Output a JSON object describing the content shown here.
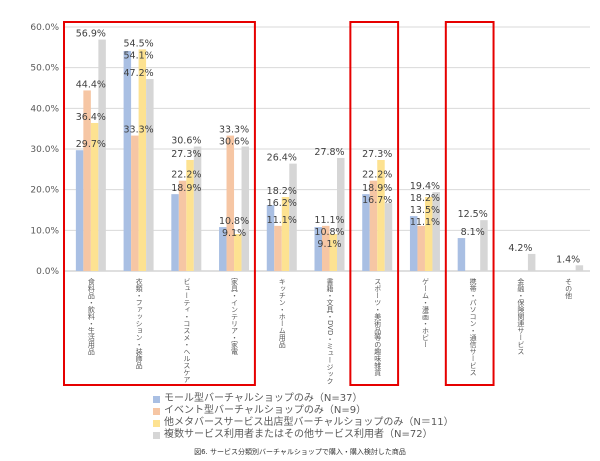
{
  "chart_data": {
    "type": "bar",
    "title": "",
    "caption": "図6. サービス分類別バーチャルショップで購入・購入検討した商品",
    "ylim": [
      0,
      60
    ],
    "yticks": [
      "0.0%",
      "10.0%",
      "20.0%",
      "30.0%",
      "40.0%",
      "50.0%",
      "60.0%"
    ],
    "grid": true,
    "legend_position": "bottom",
    "categories": [
      "食料品・飲料・生活用品",
      "衣類・ファッション・装飾品",
      "ビューティ・コスメ・ヘルスケア",
      "家具・インテリア・家電",
      "キッチン・ホーム用品",
      "書籍・文具・DVD・ミュージック",
      "スポーツ・美術品等の趣味雑貨",
      "ゲーム・漫画・ホビー",
      "携帯・パソコン・通信サービス",
      "金融・保険関連サービス",
      "その他"
    ],
    "series": [
      {
        "name": "モール型バーチャルショップのみ（N=37）",
        "color": "#a9bfe3",
        "values": [
          29.7,
          54.1,
          18.9,
          10.8,
          16.2,
          10.8,
          18.9,
          13.5,
          8.1,
          0,
          0
        ]
      },
      {
        "name": "イベント型バーチャルショップのみ（N=9）",
        "color": "#f6c6a4",
        "values": [
          44.4,
          33.3,
          22.2,
          33.3,
          11.1,
          11.1,
          22.2,
          11.1,
          0,
          0,
          0
        ]
      },
      {
        "name": "他メタバースサービス出店型バーチャルショップのみ（N＝11）",
        "color": "#fde291",
        "values": [
          36.4,
          54.5,
          27.3,
          9.1,
          18.2,
          9.1,
          27.3,
          18.2,
          0,
          0,
          0
        ]
      },
      {
        "name": "複数サービス利用者またはその他サービス利用者（N=72）",
        "color": "#d6d6d6",
        "values": [
          56.9,
          47.2,
          30.6,
          30.6,
          26.4,
          27.8,
          16.7,
          19.4,
          12.5,
          4.2,
          1.4
        ]
      }
    ],
    "highlighted_categories": [
      0,
      1,
      2,
      3,
      6,
      8
    ],
    "highlight_color": "#e60000"
  }
}
